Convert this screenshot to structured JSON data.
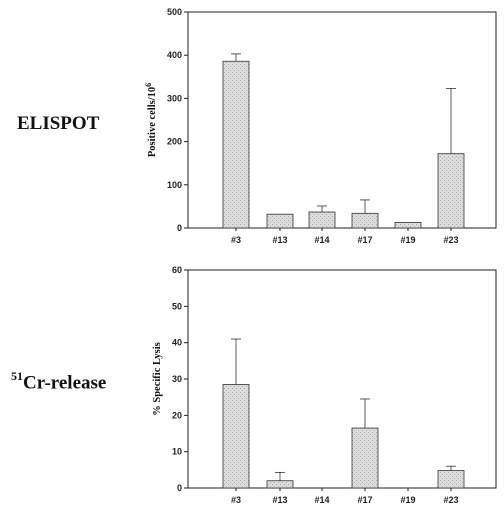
{
  "panels": {
    "elispot_label": "ELISPOT",
    "cr_label_sup": "51",
    "cr_label_main": "Cr-release"
  },
  "chart_data": [
    {
      "type": "bar",
      "categories": [
        "#3",
        "#13",
        "#14",
        "#17",
        "#19",
        "#23"
      ],
      "values": [
        386,
        32,
        37,
        34,
        13,
        172
      ],
      "errors": [
        17,
        0,
        14,
        31,
        0,
        151
      ],
      "ylabel": "Positive cells/10",
      "ylabel_sup": "6",
      "ylim": [
        0,
        500
      ],
      "yticks": [
        0,
        100,
        200,
        300,
        400,
        500
      ],
      "bar_color": "#d9d9d9",
      "grid": false
    },
    {
      "type": "bar",
      "categories": [
        "#3",
        "#13",
        "#14",
        "#17",
        "#19",
        "#23"
      ],
      "values": [
        28.5,
        2,
        0,
        16.5,
        0,
        4.8
      ],
      "errors": [
        12.5,
        2.3,
        0,
        8,
        0,
        1.2
      ],
      "ylabel": "% Specific Lysis",
      "ylabel_sup": "",
      "ylim": [
        0,
        60
      ],
      "yticks": [
        0,
        10,
        20,
        30,
        40,
        50,
        60
      ],
      "bar_color": "#d9d9d9",
      "grid": false
    }
  ]
}
